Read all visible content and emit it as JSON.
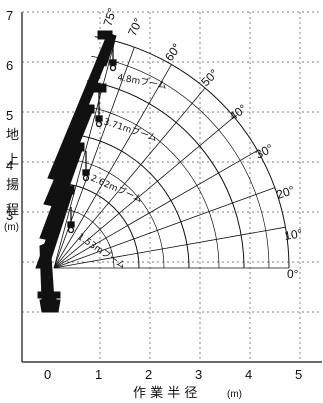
{
  "chart_data": {
    "type": "working-range",
    "x_axis": {
      "label": "作 業 半 径",
      "unit": "(m)",
      "ticks": [
        "0",
        "1",
        "2",
        "3",
        "4",
        "5"
      ],
      "range": [
        0,
        5.5
      ]
    },
    "y_axis": {
      "label_chars": [
        "地",
        "上",
        "揚",
        "程"
      ],
      "unit": "(m)",
      "ticks": [
        "3",
        "4",
        "5",
        "6",
        "7"
      ],
      "range": [
        0,
        7
      ]
    },
    "angle_labels": [
      "75°",
      "70°",
      "60°",
      "50°",
      "40°",
      "30°",
      "20°",
      "10°",
      "0°"
    ],
    "booms": [
      {
        "label": "4.8mブーム",
        "length": 4.8
      },
      {
        "label": "3.71mブーム",
        "length": 3.71
      },
      {
        "label": "2.62mブーム",
        "length": 2.62
      },
      {
        "label": "1.53mブーム",
        "length": 1.53
      }
    ],
    "grid": true
  }
}
